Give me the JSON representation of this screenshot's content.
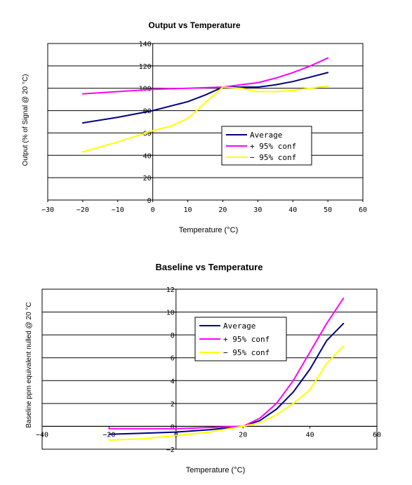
{
  "chart_data": [
    {
      "type": "line",
      "title": "Output vs Temperature",
      "xlabel": "Temperature (°C)",
      "ylabel": "Output (% of Signal @ 20 °C)",
      "xlim": [
        -30,
        60
      ],
      "ylim": [
        0,
        140
      ],
      "xticks": [
        -30,
        -20,
        -10,
        0,
        10,
        20,
        30,
        40,
        50,
        60
      ],
      "yticks": [
        0,
        20,
        40,
        60,
        80,
        100,
        120,
        140
      ],
      "xtick_labels": [
        "−30",
        "−20",
        "−10",
        "0",
        "10",
        "20",
        "30",
        "40",
        "50",
        "60"
      ],
      "ytick_labels": [
        "0",
        "20",
        "40",
        "60",
        "80",
        "100",
        "120",
        "140"
      ],
      "grid": "horizontal",
      "legend_position": "lower-right",
      "series": [
        {
          "name": "Average",
          "color": "#000080",
          "x": [
            -20,
            -10,
            0,
            5,
            10,
            15,
            20,
            25,
            30,
            35,
            40,
            45,
            50
          ],
          "values": [
            69,
            74,
            80,
            84,
            88,
            94,
            101,
            101,
            101,
            103,
            106,
            110,
            114
          ]
        },
        {
          "name": "+ 95% conf",
          "color": "#ff00ff",
          "x": [
            -20,
            -10,
            0,
            5,
            10,
            15,
            20,
            25,
            30,
            35,
            40,
            45,
            50
          ],
          "values": [
            95,
            97,
            99,
            99.5,
            100,
            100.5,
            101,
            103,
            105,
            109,
            114,
            120,
            127
          ]
        },
        {
          "name": "− 95% conf",
          "color": "#ffff00",
          "x": [
            -20,
            -10,
            0,
            5,
            10,
            15,
            20,
            25,
            30,
            35,
            40,
            45,
            50
          ],
          "values": [
            43,
            52,
            62,
            66,
            73,
            87,
            101,
            100,
            97,
            97,
            98,
            100,
            102
          ]
        }
      ]
    },
    {
      "type": "line",
      "title": "Baseline vs Temperature",
      "xlabel": "Temperature (°C)",
      "ylabel": "Baseline ppm equivalent nulled @ 20 °C",
      "xlim": [
        -40,
        60
      ],
      "ylim": [
        -2,
        12
      ],
      "xticks": [
        -40,
        -20,
        0,
        20,
        40,
        60
      ],
      "yticks": [
        -2,
        0,
        2,
        4,
        6,
        8,
        10,
        12
      ],
      "xtick_labels": [
        "−40",
        "−20",
        "0",
        "20",
        "40",
        "60"
      ],
      "ytick_labels": [
        "−2",
        "0",
        "2",
        "4",
        "6",
        "8",
        "10",
        "12"
      ],
      "grid": "horizontal",
      "legend_position": "upper-center",
      "series": [
        {
          "name": "Average",
          "color": "#000080",
          "x": [
            -20,
            -10,
            0,
            10,
            20,
            25,
            30,
            35,
            40,
            45,
            50
          ],
          "values": [
            -0.7,
            -0.6,
            -0.5,
            -0.3,
            0,
            0.5,
            1.5,
            3,
            5,
            7.5,
            9
          ]
        },
        {
          "name": "+ 95% conf",
          "color": "#ff00ff",
          "x": [
            -20,
            -10,
            0,
            10,
            20,
            25,
            30,
            35,
            40,
            45,
            50
          ],
          "values": [
            -0.2,
            -0.2,
            -0.2,
            -0.1,
            0,
            0.7,
            2,
            4,
            6.5,
            9,
            11.2
          ]
        },
        {
          "name": "− 95% conf",
          "color": "#ffff00",
          "x": [
            -20,
            -10,
            0,
            10,
            20,
            25,
            30,
            35,
            40,
            45,
            50
          ],
          "values": [
            -1.2,
            -1.1,
            -0.8,
            -0.5,
            0,
            0.3,
            1,
            2,
            3.2,
            5.5,
            7
          ]
        }
      ]
    }
  ]
}
